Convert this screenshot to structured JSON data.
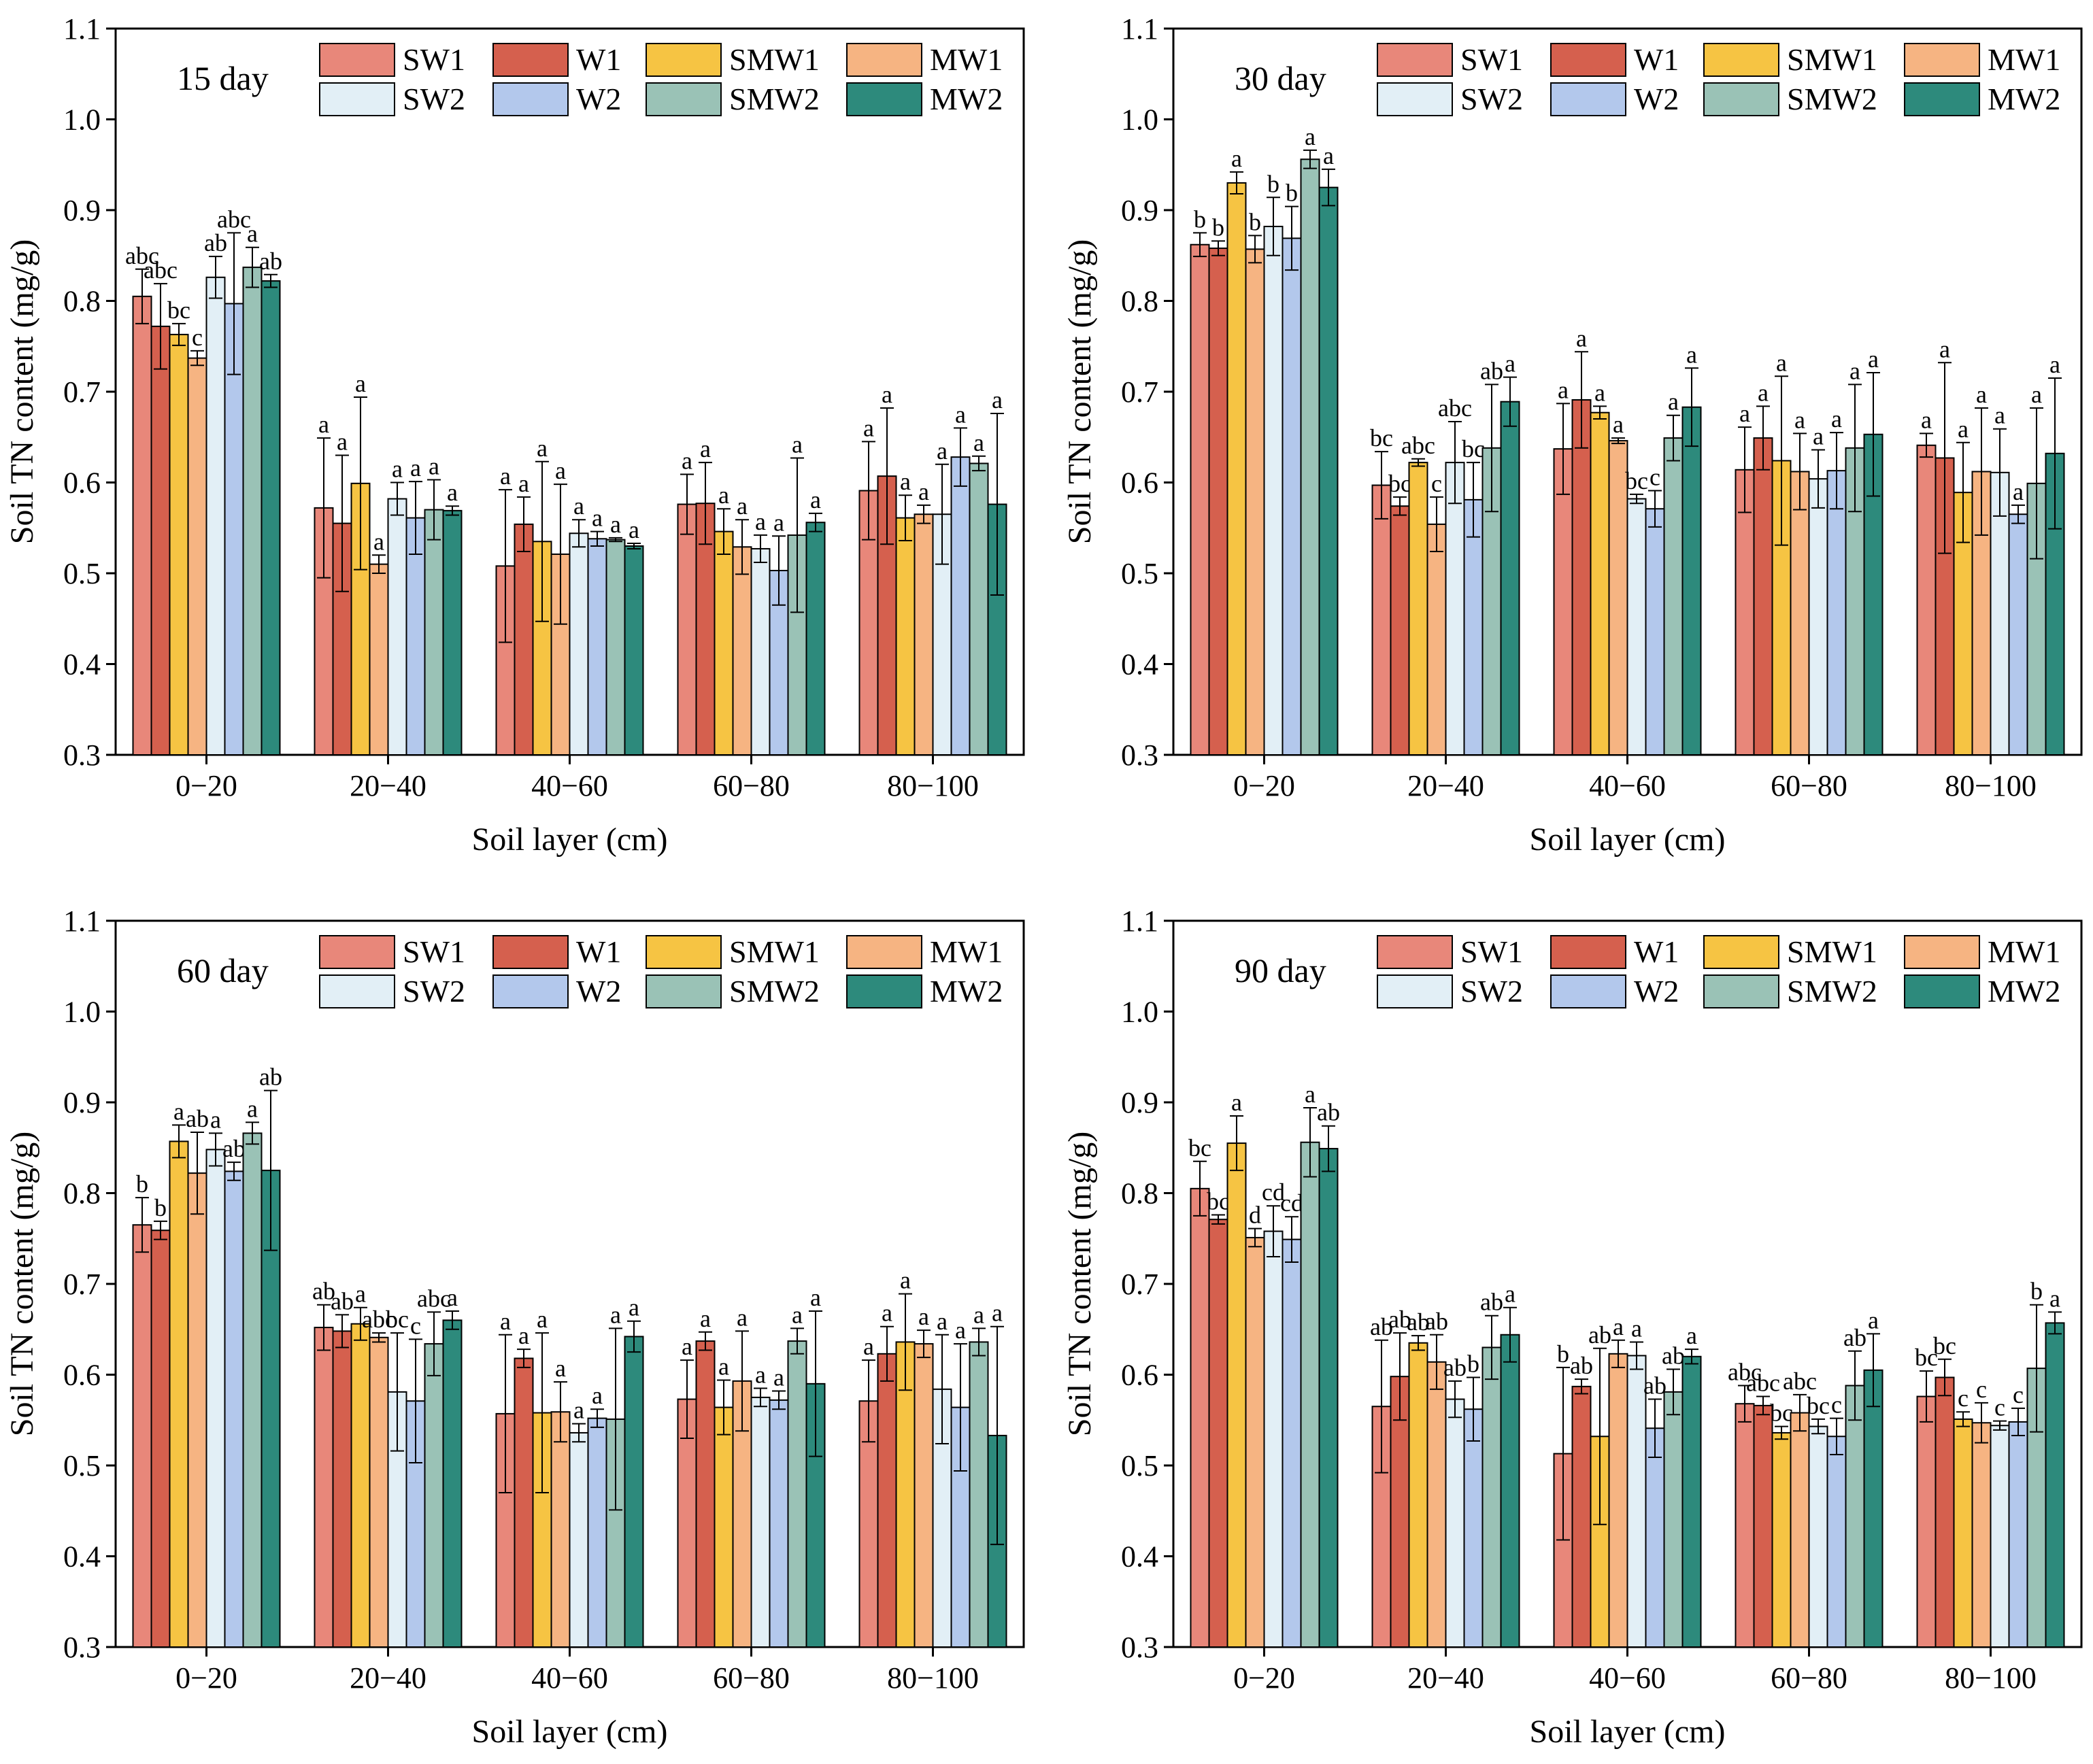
{
  "colors": {
    "SW1": "#E8877A",
    "W1": "#D5604E",
    "SMW1": "#F6C443",
    "MW1": "#F6B482",
    "SW2": "#E2EFF6",
    "W2": "#B3C8EC",
    "SMW2": "#9AC2B6",
    "MW2": "#2D8A7C"
  },
  "chart_data": [
    {
      "type": "bar",
      "title": "15 day",
      "xlabel": "Soil layer (cm)",
      "ylabel": "Soil TN content (mg/g)",
      "ylim": [
        0.3,
        1.1
      ],
      "yticks": [
        "0.3",
        "0.4",
        "0.5",
        "0.6",
        "0.7",
        "0.8",
        "0.9",
        "1.0",
        "1.1"
      ],
      "categories": [
        "0−20",
        "20−40",
        "40−60",
        "60−80",
        "80−100"
      ],
      "series": [
        {
          "name": "SW1",
          "values": [
            0.805,
            0.572,
            0.508,
            0.576,
            0.591
          ],
          "errors": [
            0.03,
            0.077,
            0.084,
            0.033,
            0.054
          ],
          "labels": [
            "abc",
            "a",
            "a",
            "a",
            "a"
          ]
        },
        {
          "name": "W1",
          "values": [
            0.772,
            0.555,
            0.554,
            0.577,
            0.607
          ],
          "errors": [
            0.047,
            0.075,
            0.03,
            0.045,
            0.075
          ],
          "labels": [
            "abc",
            "a",
            "a",
            "a",
            "a"
          ]
        },
        {
          "name": "SMW1",
          "values": [
            0.763,
            0.599,
            0.535,
            0.546,
            0.561
          ],
          "errors": [
            0.012,
            0.095,
            0.088,
            0.025,
            0.025
          ],
          "labels": [
            "bc",
            "a",
            "a",
            "a",
            "a"
          ]
        },
        {
          "name": "MW1",
          "values": [
            0.737,
            0.51,
            0.521,
            0.529,
            0.565
          ],
          "errors": [
            0.008,
            0.01,
            0.077,
            0.03,
            0.01
          ],
          "labels": [
            "c",
            "a",
            "a",
            "a",
            "a"
          ]
        },
        {
          "name": "SW2",
          "values": [
            0.826,
            0.582,
            0.544,
            0.527,
            0.565
          ],
          "errors": [
            0.023,
            0.018,
            0.015,
            0.015,
            0.055
          ],
          "labels": [
            "ab",
            "a",
            "a",
            "a",
            "a"
          ]
        },
        {
          "name": "W2",
          "values": [
            0.797,
            0.561,
            0.538,
            0.503,
            0.628
          ],
          "errors": [
            0.078,
            0.04,
            0.008,
            0.038,
            0.032
          ],
          "labels": [
            "abc",
            "a",
            "a",
            "a",
            "a"
          ]
        },
        {
          "name": "SMW2",
          "values": [
            0.837,
            0.57,
            0.537,
            0.542,
            0.621
          ],
          "errors": [
            0.022,
            0.033,
            0.002,
            0.085,
            0.008
          ],
          "labels": [
            "a",
            "a",
            "a",
            "a",
            "a"
          ]
        },
        {
          "name": "MW2",
          "values": [
            0.822,
            0.569,
            0.53,
            0.556,
            0.576
          ],
          "errors": [
            0.007,
            0.005,
            0.003,
            0.01,
            0.1
          ],
          "labels": [
            "ab",
            "a",
            "a",
            "a",
            "a"
          ]
        }
      ],
      "legend": "top-right"
    },
    {
      "type": "bar",
      "title": "30 day",
      "xlabel": "Soil layer (cm)",
      "ylabel": "Soil TN content (mg/g)",
      "ylim": [
        0.3,
        1.1
      ],
      "yticks": [
        "0.3",
        "0.4",
        "0.5",
        "0.6",
        "0.7",
        "0.8",
        "0.9",
        "1.0",
        "1.1"
      ],
      "categories": [
        "0−20",
        "20−40",
        "40−60",
        "60−80",
        "80−100"
      ],
      "series": [
        {
          "name": "SW1",
          "values": [
            0.862,
            0.597,
            0.637,
            0.614,
            0.641
          ],
          "errors": [
            0.013,
            0.037,
            0.05,
            0.047,
            0.013
          ],
          "labels": [
            "b",
            "bc",
            "a",
            "a",
            "a"
          ]
        },
        {
          "name": "W1",
          "values": [
            0.858,
            0.574,
            0.691,
            0.649,
            0.627
          ],
          "errors": [
            0.008,
            0.01,
            0.053,
            0.035,
            0.105
          ],
          "labels": [
            "b",
            "bc",
            "a",
            "a",
            "a"
          ]
        },
        {
          "name": "SMW1",
          "values": [
            0.93,
            0.622,
            0.677,
            0.624,
            0.589
          ],
          "errors": [
            0.012,
            0.004,
            0.007,
            0.093,
            0.055
          ],
          "labels": [
            "a",
            "abc",
            "a",
            "a",
            "a"
          ]
        },
        {
          "name": "MW1",
          "values": [
            0.857,
            0.554,
            0.646,
            0.612,
            0.612
          ],
          "errors": [
            0.015,
            0.03,
            0.003,
            0.042,
            0.07
          ],
          "labels": [
            "b",
            "c",
            "a",
            "a",
            "a"
          ]
        },
        {
          "name": "SW2",
          "values": [
            0.882,
            0.622,
            0.582,
            0.604,
            0.611
          ],
          "errors": [
            0.032,
            0.045,
            0.005,
            0.032,
            0.048
          ],
          "labels": [
            "b",
            "abc",
            "bc",
            "a",
            "a"
          ]
        },
        {
          "name": "W2",
          "values": [
            0.869,
            0.581,
            0.571,
            0.613,
            0.565
          ],
          "errors": [
            0.035,
            0.041,
            0.02,
            0.042,
            0.01
          ],
          "labels": [
            "b",
            "bc",
            "c",
            "a",
            "a"
          ]
        },
        {
          "name": "SMW2",
          "values": [
            0.956,
            0.638,
            0.649,
            0.638,
            0.599
          ],
          "errors": [
            0.01,
            0.07,
            0.025,
            0.07,
            0.083
          ],
          "labels": [
            "a",
            "ab",
            "a",
            "a",
            "a"
          ]
        },
        {
          "name": "MW2",
          "values": [
            0.925,
            0.689,
            0.683,
            0.653,
            0.632
          ],
          "errors": [
            0.02,
            0.027,
            0.043,
            0.068,
            0.083
          ],
          "labels": [
            "a",
            "a",
            "a",
            "a",
            "a"
          ]
        }
      ],
      "legend": "top-right"
    },
    {
      "type": "bar",
      "title": "60 day",
      "xlabel": "Soil layer (cm)",
      "ylabel": "Soil TN content (mg/g)",
      "ylim": [
        0.3,
        1.1
      ],
      "yticks": [
        "0.3",
        "0.4",
        "0.5",
        "0.6",
        "0.7",
        "0.8",
        "0.9",
        "1.0",
        "1.1"
      ],
      "categories": [
        "0−20",
        "20−40",
        "40−60",
        "60−80",
        "80−100"
      ],
      "series": [
        {
          "name": "SW1",
          "values": [
            0.765,
            0.652,
            0.557,
            0.573,
            0.571
          ],
          "errors": [
            0.03,
            0.025,
            0.087,
            0.043,
            0.045
          ],
          "labels": [
            "b",
            "ab",
            "a",
            "a",
            "a"
          ]
        },
        {
          "name": "W1",
          "values": [
            0.759,
            0.648,
            0.618,
            0.637,
            0.623
          ],
          "errors": [
            0.01,
            0.018,
            0.01,
            0.01,
            0.03
          ],
          "labels": [
            "b",
            "ab",
            "a",
            "a",
            "a"
          ]
        },
        {
          "name": "SMW1",
          "values": [
            0.857,
            0.656,
            0.558,
            0.564,
            0.636
          ],
          "errors": [
            0.018,
            0.018,
            0.088,
            0.03,
            0.053
          ],
          "labels": [
            "a",
            "a",
            "a",
            "a",
            "a"
          ]
        },
        {
          "name": "MW1",
          "values": [
            0.822,
            0.641,
            0.559,
            0.593,
            0.634
          ],
          "errors": [
            0.045,
            0.005,
            0.033,
            0.055,
            0.015
          ],
          "labels": [
            "ab",
            "abc",
            "a",
            "a",
            "a"
          ]
        },
        {
          "name": "SW2",
          "values": [
            0.848,
            0.581,
            0.536,
            0.575,
            0.584
          ],
          "errors": [
            0.018,
            0.065,
            0.01,
            0.01,
            0.06
          ],
          "labels": [
            "a",
            "bc",
            "a",
            "a",
            "a"
          ]
        },
        {
          "name": "W2",
          "values": [
            0.824,
            0.571,
            0.552,
            0.572,
            0.564
          ],
          "errors": [
            0.01,
            0.068,
            0.01,
            0.01,
            0.07
          ],
          "labels": [
            "ab",
            "c",
            "a",
            "a",
            "a"
          ]
        },
        {
          "name": "SMW2",
          "values": [
            0.866,
            0.634,
            0.551,
            0.637,
            0.636
          ],
          "errors": [
            0.012,
            0.035,
            0.1,
            0.014,
            0.015
          ],
          "labels": [
            "a",
            "abc",
            "a",
            "a",
            "a"
          ]
        },
        {
          "name": "MW2",
          "values": [
            0.825,
            0.66,
            0.642,
            0.59,
            0.533
          ],
          "errors": [
            0.088,
            0.01,
            0.017,
            0.08,
            0.12
          ],
          "labels": [
            "ab",
            "a",
            "a",
            "a",
            "a"
          ]
        }
      ],
      "legend": "top-right"
    },
    {
      "type": "bar",
      "title": "90 day",
      "xlabel": "Soil layer (cm)",
      "ylabel": "Soil TN content (mg/g)",
      "ylim": [
        0.3,
        1.1
      ],
      "yticks": [
        "0.3",
        "0.4",
        "0.5",
        "0.6",
        "0.7",
        "0.8",
        "0.9",
        "1.0",
        "1.1"
      ],
      "categories": [
        "0−20",
        "20−40",
        "40−60",
        "60−80",
        "80−100"
      ],
      "series": [
        {
          "name": "SW1",
          "values": [
            0.805,
            0.565,
            0.513,
            0.568,
            0.576
          ],
          "errors": [
            0.03,
            0.073,
            0.095,
            0.02,
            0.028
          ],
          "labels": [
            "bc",
            "ab",
            "b",
            "abc",
            "bc"
          ]
        },
        {
          "name": "W1",
          "values": [
            0.771,
            0.598,
            0.587,
            0.566,
            0.597
          ],
          "errors": [
            0.005,
            0.048,
            0.008,
            0.01,
            0.02
          ],
          "labels": [
            "bc",
            "ab",
            "ab",
            "abc",
            "bc"
          ]
        },
        {
          "name": "SMW1",
          "values": [
            0.855,
            0.635,
            0.532,
            0.536,
            0.551
          ],
          "errors": [
            0.03,
            0.008,
            0.097,
            0.007,
            0.008
          ],
          "labels": [
            "a",
            "ab",
            "ab",
            "bc",
            "c"
          ]
        },
        {
          "name": "MW1",
          "values": [
            0.751,
            0.614,
            0.623,
            0.558,
            0.547
          ],
          "errors": [
            0.01,
            0.03,
            0.015,
            0.02,
            0.022
          ],
          "labels": [
            "d",
            "ab",
            "a",
            "abc",
            "c"
          ]
        },
        {
          "name": "SW2",
          "values": [
            0.758,
            0.573,
            0.621,
            0.543,
            0.544
          ],
          "errors": [
            0.028,
            0.02,
            0.015,
            0.008,
            0.005
          ],
          "labels": [
            "cd",
            "ab",
            "a",
            "bc",
            "c"
          ]
        },
        {
          "name": "W2",
          "values": [
            0.749,
            0.562,
            0.541,
            0.532,
            0.548
          ],
          "errors": [
            0.025,
            0.035,
            0.032,
            0.02,
            0.015
          ],
          "labels": [
            "cd",
            "b",
            "ab",
            "c",
            "c"
          ]
        },
        {
          "name": "SMW2",
          "values": [
            0.856,
            0.63,
            0.581,
            0.588,
            0.607
          ],
          "errors": [
            0.038,
            0.035,
            0.025,
            0.038,
            0.07
          ],
          "labels": [
            "a",
            "ab",
            "ab",
            "ab",
            "b"
          ]
        },
        {
          "name": "MW2",
          "values": [
            0.849,
            0.644,
            0.62,
            0.605,
            0.657
          ],
          "errors": [
            0.025,
            0.03,
            0.008,
            0.04,
            0.012
          ],
          "labels": [
            "ab",
            "a",
            "a",
            "a",
            "a"
          ]
        }
      ],
      "legend": "top-right"
    }
  ]
}
